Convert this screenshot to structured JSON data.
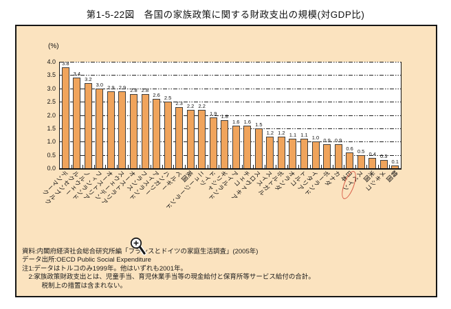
{
  "figure": {
    "title": "第1-5-22図　各国の家族政策に関する財政支出の規模(対GDP比)"
  },
  "chart_data": {
    "type": "bar",
    "title": "各国の家族政策に関する財政支出の規模(対GDP比)",
    "unit_label": "(%)",
    "ylabel": "(%)",
    "xlabel": "",
    "ylim": [
      0,
      4.0
    ],
    "ytick_step": 0.5,
    "grid": "dashed-horizontal",
    "legend": "none",
    "bar_color": "#f0a45c",
    "bar_border_color": "#3d3d3d",
    "panel_background": "#fbe3bf",
    "categories": [
      "デンマーク",
      "ルクセンブルク",
      "ノルウェー",
      "フィンランド",
      "オーストリア",
      "スウェーデン",
      "オーストラリア",
      "フランス",
      "アイスランド",
      "ハンガリー",
      "ベルギー",
      "英国",
      "ニュージーランド",
      "ドイツ",
      "ギリシャ",
      "アイルランド",
      "チェコ",
      "スロヴァキア",
      "スイス",
      "ポルトガル",
      "オランダ",
      "トルコ",
      "イタリア",
      "ポーランド",
      "カナダ",
      "日本",
      "スペイン",
      "米国",
      "メキシコ",
      "韓国"
    ],
    "values": [
      3.8,
      3.4,
      3.2,
      3.0,
      2.9,
      2.9,
      2.8,
      2.8,
      2.6,
      2.5,
      2.3,
      2.2,
      2.2,
      1.9,
      1.8,
      1.6,
      1.6,
      1.5,
      1.2,
      1.2,
      1.1,
      1.1,
      1.0,
      0.9,
      0.9,
      0.6,
      0.5,
      0.4,
      0.3,
      0.1
    ],
    "highlight": {
      "category": "日本",
      "index": 25,
      "ellipse_color": "#d85a45"
    }
  },
  "footnotes": {
    "lines": [
      "資料:内閣府経済社会総合研究所編「フランスとドイツの家庭生活調査」(2005年)",
      "データ出所:OECD Public Social Expenditure",
      "注1:データはトルコのみ1999年。他はいずれも2001年。",
      "　2:家族政策財政支出とは、児童手当、育児休業手当等の現金給付と保育所等サービス給付の合計。",
      "　　　税制上の措置は含まれない。"
    ]
  },
  "cursor": {
    "icon": "zoom-in-cursor"
  }
}
